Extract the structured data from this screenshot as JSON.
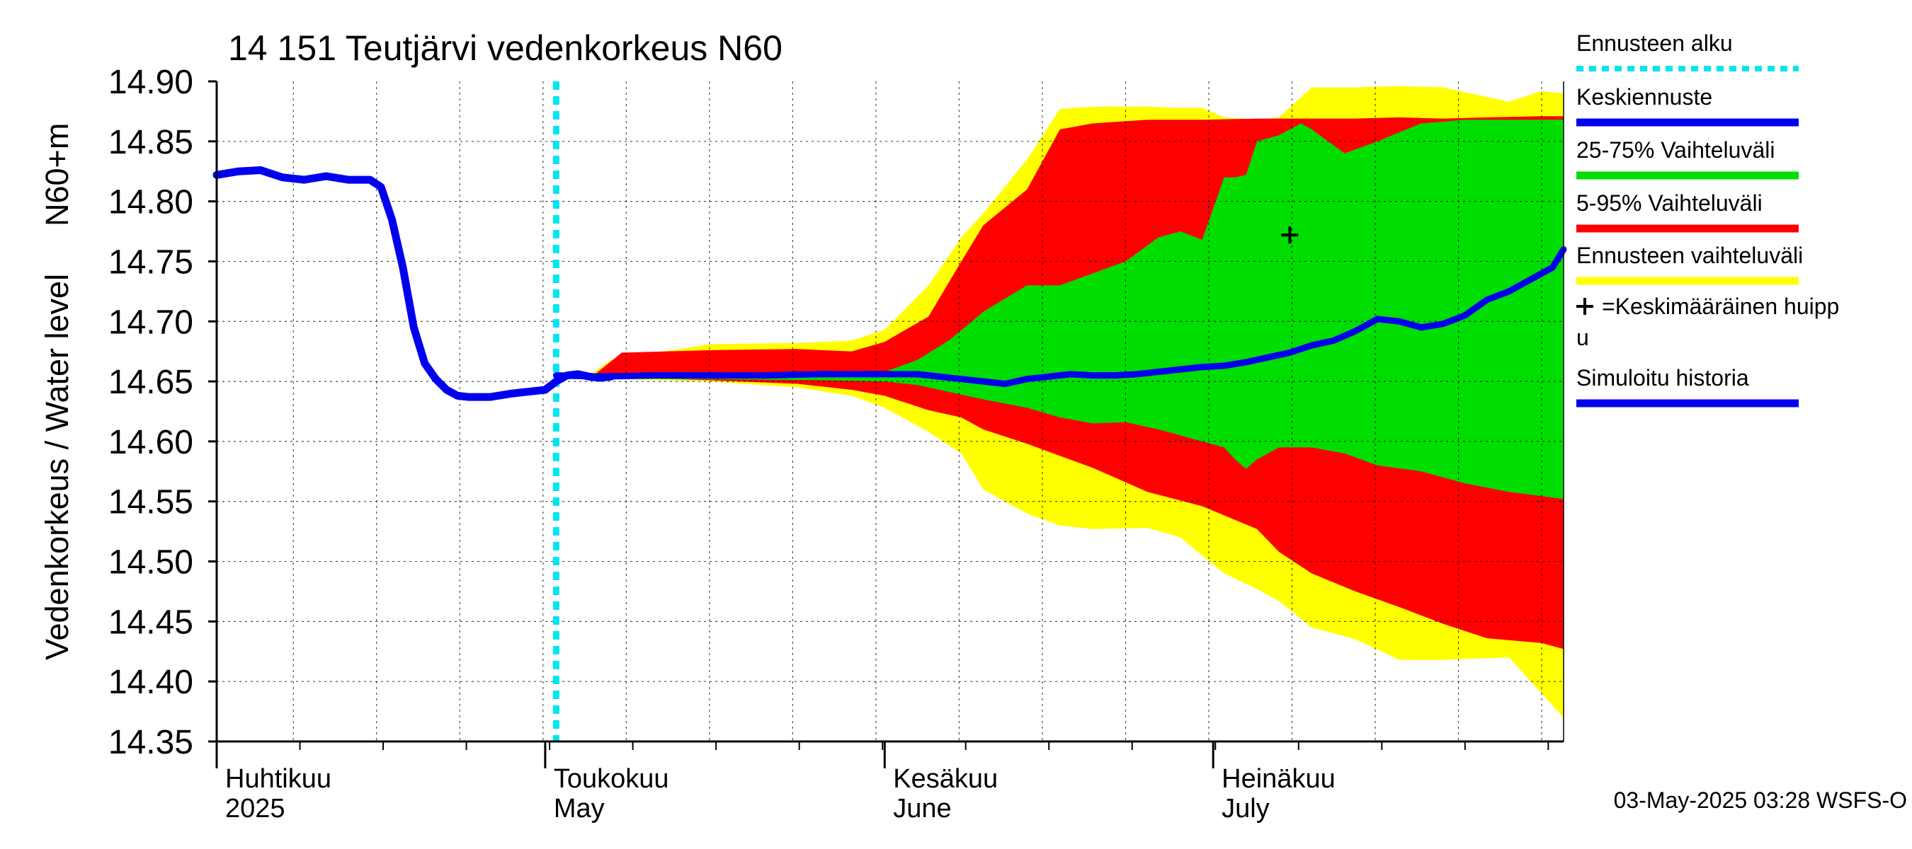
{
  "chart_data": {
    "type": "area",
    "title": "14 151 Teutjärvi vedenkorkeus N60",
    "ylabel_lines": [
      "Vedenkorkeus / Water level",
      "N60+m"
    ],
    "ylim": [
      14.35,
      14.9
    ],
    "yticks": [
      "14.35",
      "14.40",
      "14.45",
      "14.50",
      "14.55",
      "14.60",
      "14.65",
      "14.70",
      "14.75",
      "14.80",
      "14.85",
      "14.90"
    ],
    "x_unit": "days since 2025-04-01",
    "xlim": [
      0,
      123
    ],
    "month_labels": [
      {
        "day": 0,
        "fi": "Huhtikuu",
        "en": "2025"
      },
      {
        "day": 30,
        "fi": "Toukokuu",
        "en": "May"
      },
      {
        "day": 61,
        "fi": "Kesäkuu",
        "en": "June"
      },
      {
        "day": 91,
        "fi": "Heinäkuu",
        "en": "July"
      }
    ],
    "forecast_start_day": 31,
    "mean_peak": {
      "day": 98,
      "value": 14.772
    },
    "timestamp": "03-May-2025 03:28 WSFS-O",
    "legend": [
      {
        "label": "Ennusteen alku",
        "color": "#00e5ee",
        "style": "dotted"
      },
      {
        "label": "Keskiennuste",
        "color": "#0000ee",
        "style": "line"
      },
      {
        "label": "25-75% Vaihteluväli",
        "color": "#00dd00",
        "style": "line"
      },
      {
        "label": "5-95% Vaihteluväli",
        "color": "#ff0000",
        "style": "line"
      },
      {
        "label": "Ennusteen vaihteluväli",
        "color": "#ffff00",
        "style": "line"
      },
      {
        "label": "=Keskimääräinen huipp",
        "label2": "u",
        "color": "#000000",
        "style": "plus"
      },
      {
        "label": "Simuloitu historia",
        "color": "#0000ee",
        "style": "line"
      }
    ],
    "colors": {
      "yellow": "#ffff00",
      "red": "#ff0000",
      "green": "#00dd00",
      "blue": "#0000ee",
      "cyan": "#00e5ee"
    },
    "series": [
      {
        "name": "Ennusteen vaihteluväli",
        "x": [
          34,
          36,
          45,
          53,
          58,
          61,
          65,
          68,
          70,
          74,
          77,
          80,
          85,
          88,
          90,
          92,
          95,
          97,
          100,
          104,
          108,
          112,
          118,
          121,
          123
        ],
        "upper": [
          14.655,
          14.668,
          14.681,
          14.682,
          14.684,
          14.693,
          14.73,
          14.77,
          14.79,
          14.835,
          14.877,
          14.879,
          14.879,
          14.878,
          14.878,
          14.87,
          14.868,
          14.87,
          14.895,
          14.895,
          14.896,
          14.895,
          14.883,
          14.892,
          14.89
        ],
        "lower": [
          14.652,
          14.652,
          14.65,
          14.645,
          14.638,
          14.628,
          14.608,
          14.59,
          14.56,
          14.54,
          14.53,
          14.527,
          14.528,
          14.52,
          14.505,
          14.49,
          14.477,
          14.467,
          14.445,
          14.435,
          14.418,
          14.418,
          14.42,
          14.39,
          14.37
        ]
      },
      {
        "name": "5-95% Vaihteluväli",
        "x": [
          34,
          37,
          45,
          53,
          58,
          61,
          65,
          68,
          70,
          74,
          77,
          80,
          85,
          90,
          95,
          97,
          100,
          104,
          108,
          112,
          116,
          121,
          123
        ],
        "upper": [
          14.652,
          14.674,
          14.676,
          14.677,
          14.675,
          14.683,
          14.704,
          14.75,
          14.78,
          14.81,
          14.86,
          14.865,
          14.868,
          14.868,
          14.869,
          14.869,
          14.869,
          14.869,
          14.87,
          14.869,
          14.87,
          14.871,
          14.871
        ],
        "lower": [
          14.652,
          14.653,
          14.651,
          14.648,
          14.643,
          14.638,
          14.626,
          14.62,
          14.61,
          14.598,
          14.588,
          14.578,
          14.558,
          14.546,
          14.527,
          14.508,
          14.49,
          14.475,
          14.462,
          14.448,
          14.436,
          14.432,
          14.427
        ]
      },
      {
        "name": "25-75% Vaihteluväli",
        "x": [
          34,
          45,
          55,
          61,
          64,
          67,
          70,
          74,
          77,
          80,
          83,
          86,
          88,
          90,
          92,
          93,
          94,
          95,
          97,
          99,
          100,
          103,
          106,
          110,
          114,
          118,
          123
        ],
        "upper": [
          14.652,
          14.654,
          14.656,
          14.658,
          14.668,
          14.685,
          14.708,
          14.73,
          14.73,
          14.74,
          14.75,
          14.77,
          14.775,
          14.768,
          14.82,
          14.82,
          14.822,
          14.85,
          14.855,
          14.865,
          14.86,
          14.84,
          14.85,
          14.865,
          14.868,
          14.868,
          14.868
        ],
        "lower": [
          14.652,
          14.652,
          14.651,
          14.65,
          14.647,
          14.641,
          14.635,
          14.628,
          14.62,
          14.615,
          14.616,
          14.61,
          14.605,
          14.6,
          14.595,
          14.585,
          14.577,
          14.585,
          14.595,
          14.595,
          14.595,
          14.59,
          14.58,
          14.575,
          14.565,
          14.558,
          14.552
        ]
      },
      {
        "name": "Keskiennuste",
        "x": [
          31,
          35,
          40,
          45,
          50,
          55,
          60,
          62,
          64,
          66,
          68,
          70,
          72,
          74,
          76,
          78,
          80,
          82,
          84,
          86,
          88,
          90,
          92,
          94,
          96,
          98,
          100,
          102,
          104,
          106,
          108,
          110,
          112,
          114,
          116,
          118,
          120,
          122,
          123
        ],
        "values": [
          14.655,
          14.654,
          14.655,
          14.655,
          14.655,
          14.656,
          14.656,
          14.656,
          14.656,
          14.654,
          14.652,
          14.65,
          14.648,
          14.652,
          14.654,
          14.656,
          14.655,
          14.655,
          14.656,
          14.658,
          14.66,
          14.662,
          14.663,
          14.666,
          14.67,
          14.674,
          14.68,
          14.684,
          14.692,
          14.702,
          14.7,
          14.695,
          14.698,
          14.705,
          14.718,
          14.725,
          14.735,
          14.745,
          14.76
        ]
      },
      {
        "name": "Simuloitu historia",
        "x": [
          0,
          2,
          4,
          6,
          8,
          10,
          12,
          13,
          14,
          15,
          16,
          17,
          18,
          19,
          20,
          21,
          22,
          23,
          25,
          27,
          29,
          30,
          31,
          32,
          33,
          34,
          35,
          36
        ],
        "values": [
          14.822,
          14.825,
          14.826,
          14.82,
          14.818,
          14.821,
          14.818,
          14.818,
          14.818,
          14.812,
          14.785,
          14.745,
          14.695,
          14.665,
          14.652,
          14.643,
          14.638,
          14.637,
          14.637,
          14.64,
          14.642,
          14.643,
          14.65,
          14.655,
          14.656,
          14.654,
          14.653,
          14.654
        ]
      }
    ]
  }
}
